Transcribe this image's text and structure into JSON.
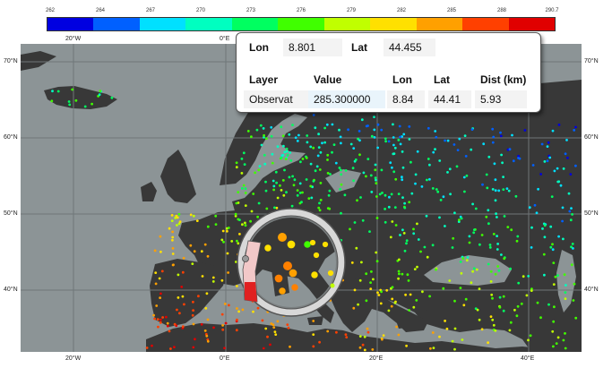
{
  "colorbar": {
    "ticks": [
      "262",
      "264",
      "267",
      "270",
      "273",
      "276",
      "279",
      "282",
      "285",
      "288",
      "290.7"
    ],
    "colors": [
      "#0000e0",
      "#0060ff",
      "#00e0ff",
      "#00ffc0",
      "#00ff60",
      "#40ff00",
      "#c0ff00",
      "#ffe000",
      "#ffa000",
      "#ff4000",
      "#e00000"
    ]
  },
  "axes": {
    "top_lon": [
      "20°W",
      "0°E"
    ],
    "bottom_lon": [
      "20°W",
      "0°E",
      "20°E",
      "40°E"
    ],
    "left_lat": [
      "70°N",
      "60°N",
      "50°N",
      "40°N"
    ],
    "right_lat": [
      "70°N",
      "60°N",
      "50°N",
      "40°N"
    ]
  },
  "info": {
    "lon_label": "Lon",
    "lon_value": "8.801",
    "lat_label": "Lat",
    "lat_value": "44.455",
    "headers": [
      "Layer",
      "Value",
      "Lon",
      "Lat",
      "Dist (km)"
    ],
    "row": [
      "Observat",
      "285.300000",
      "8.84",
      "44.41",
      "5.93"
    ]
  },
  "colors": {
    "ocean": "#8c9496",
    "land": "#383838",
    "grid": "#6f7678"
  }
}
